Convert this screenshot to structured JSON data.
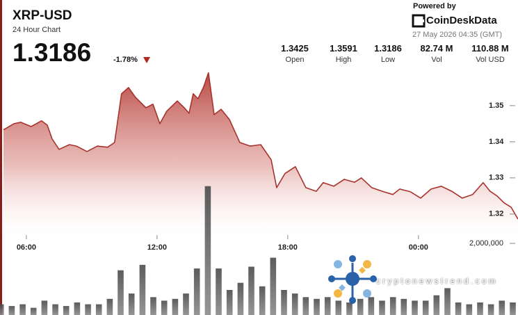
{
  "header": {
    "title": "XRP-USD",
    "subtitle": "24 Hour Chart",
    "price": "1.3186",
    "change": "-1.78%",
    "powered_by": "Powered by",
    "brand": "CoinDeskData",
    "timestamp": "27 May 2026 04:35 (GMT)"
  },
  "stats": [
    {
      "value": "1.3425",
      "label": "Open"
    },
    {
      "value": "1.3591",
      "label": "High"
    },
    {
      "value": "1.3186",
      "label": "Low"
    },
    {
      "value": "82.74 M",
      "label": "Vol"
    },
    {
      "value": "110.88 M",
      "label": "Vol USD"
    }
  ],
  "watermark": "cryptonewstrend.com",
  "chart_data": {
    "type": "line",
    "xlim": [
      4.95,
      28.57
    ],
    "xticks": [
      {
        "value": 6,
        "label": "06:00"
      },
      {
        "value": 12,
        "label": "12:00"
      },
      {
        "value": 18,
        "label": "18:00"
      },
      {
        "value": 24,
        "label": "00:00"
      }
    ],
    "ylim": [
      1.3138,
      1.3623
    ],
    "yticks": [
      1.35,
      1.34,
      1.33,
      1.32
    ],
    "y2lim": [
      0,
      8800000
    ],
    "y2ticks": [
      {
        "value": 2000000,
        "label": "2,000,000"
      }
    ],
    "series": [
      {
        "name": "Price",
        "color": "#a8322c",
        "x": [
          4.95,
          5.43,
          5.74,
          6.22,
          6.7,
          6.96,
          7.18,
          7.5,
          7.98,
          8.3,
          8.78,
          9.26,
          9.73,
          10.05,
          10.37,
          10.69,
          11.01,
          11.49,
          11.81,
          12.13,
          12.45,
          12.93,
          13.25,
          13.47,
          13.66,
          13.88,
          14.14,
          14.36,
          14.62,
          14.94,
          15.32,
          15.8,
          16.28,
          16.76,
          17.24,
          17.49,
          17.87,
          18.35,
          18.83,
          19.31,
          19.63,
          20.11,
          20.59,
          21.07,
          21.38,
          21.86,
          22.34,
          22.82,
          23.14,
          23.62,
          24.1,
          24.58,
          25.05,
          25.53,
          26.01,
          26.49,
          26.97,
          27.29,
          27.61,
          27.93,
          28.25,
          28.57
        ],
        "values": [
          1.3433,
          1.345,
          1.3454,
          1.3442,
          1.3458,
          1.3446,
          1.3408,
          1.3379,
          1.3392,
          1.3388,
          1.3373,
          1.3388,
          1.3385,
          1.3398,
          1.3533,
          1.355,
          1.3523,
          1.3494,
          1.3504,
          1.345,
          1.3485,
          1.3513,
          1.3494,
          1.3479,
          1.3533,
          1.3519,
          1.3552,
          1.3591,
          1.3475,
          1.349,
          1.3462,
          1.3398,
          1.3388,
          1.3392,
          1.335,
          1.3273,
          1.3312,
          1.3331,
          1.3273,
          1.3263,
          1.3287,
          1.3277,
          1.3296,
          1.3288,
          1.33,
          1.3273,
          1.3263,
          1.3254,
          1.3269,
          1.3262,
          1.3244,
          1.3269,
          1.3277,
          1.3263,
          1.3244,
          1.3254,
          1.3287,
          1.3263,
          1.325,
          1.3231,
          1.3219,
          1.3186
        ]
      },
      {
        "name": "Volume",
        "type": "bar",
        "axis": "y2",
        "color": "#5a5a5a",
        "x": [
          4.83,
          5.33,
          5.83,
          6.33,
          6.83,
          7.33,
          7.83,
          8.33,
          8.83,
          9.33,
          9.83,
          10.33,
          10.83,
          11.33,
          11.83,
          12.33,
          12.83,
          13.33,
          13.83,
          14.33,
          14.83,
          15.33,
          15.83,
          16.33,
          16.83,
          17.33,
          17.83,
          18.33,
          18.83,
          19.33,
          19.83,
          20.33,
          20.83,
          21.33,
          21.83,
          22.33,
          22.83,
          23.33,
          23.83,
          24.33,
          24.83,
          25.33,
          25.83,
          26.33,
          26.83,
          27.33,
          27.83,
          28.33
        ],
        "values": [
          300000,
          250000,
          300000,
          200000,
          400000,
          300000,
          250000,
          350000,
          300000,
          300000,
          450000,
          1250000,
          600000,
          1400000,
          500000,
          400000,
          450000,
          600000,
          1300000,
          3600000,
          1300000,
          700000,
          900000,
          1350000,
          800000,
          1600000,
          700000,
          600000,
          500000,
          450000,
          500000,
          400000,
          350000,
          450000,
          500000,
          400000,
          500000,
          450000,
          400000,
          400000,
          550000,
          750000,
          350000,
          300000,
          350000,
          300000,
          400000,
          350000
        ]
      }
    ]
  }
}
